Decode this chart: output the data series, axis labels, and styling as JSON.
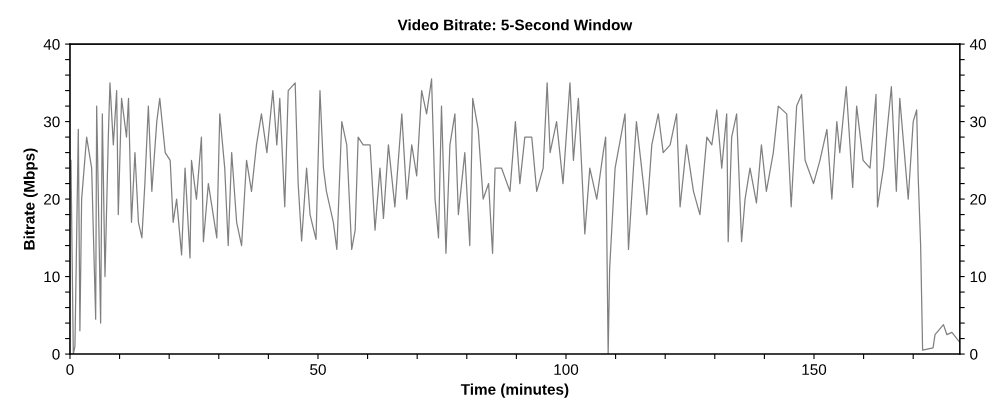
{
  "chart_data": {
    "type": "line",
    "title": "Video Bitrate: 5-Second Window",
    "xlabel": "Time (minutes)",
    "ylabel": "Bitrate (Mbps)",
    "xlim": [
      0,
      179.4
    ],
    "xticks": [
      0,
      {
        "value": 10,
        "label": null
      },
      {
        "value": 20,
        "label": null
      },
      {
        "value": 30,
        "label": null
      },
      {
        "value": 40,
        "label": null
      },
      50,
      {
        "value": 60,
        "label": null
      },
      {
        "value": 70,
        "label": null
      },
      {
        "value": 80,
        "label": null
      },
      {
        "value": 90,
        "label": null
      },
      100,
      {
        "value": 110,
        "label": null
      },
      {
        "value": 120,
        "label": null
      },
      {
        "value": 130,
        "label": null
      },
      {
        "value": 140,
        "label": null
      },
      150,
      {
        "value": 160,
        "label": null
      },
      {
        "value": 170,
        "label": null
      }
    ],
    "ylim": [
      0,
      40
    ],
    "yticks": [
      0,
      {
        "value": 2,
        "label": null
      },
      {
        "value": 4,
        "label": null
      },
      {
        "value": 6,
        "label": null
      },
      {
        "value": 8,
        "label": null
      },
      10,
      {
        "value": 12,
        "label": null
      },
      {
        "value": 14,
        "label": null
      },
      {
        "value": 16,
        "label": null
      },
      {
        "value": 18,
        "label": null
      },
      20,
      {
        "value": 22,
        "label": null
      },
      {
        "value": 24,
        "label": null
      },
      {
        "value": 26,
        "label": null
      },
      {
        "value": 28,
        "label": null
      },
      30,
      {
        "value": 32,
        "label": null
      },
      {
        "value": 34,
        "label": null
      },
      {
        "value": 36,
        "label": null
      },
      {
        "value": 38,
        "label": null
      },
      40
    ],
    "y2lim": [
      0,
      40
    ],
    "y2ticks": [
      0,
      {
        "value": 2,
        "label": null
      },
      {
        "value": 4,
        "label": null
      },
      {
        "value": 6,
        "label": null
      },
      {
        "value": 8,
        "label": null
      },
      10,
      {
        "value": 12,
        "label": null
      },
      {
        "value": 14,
        "label": null
      },
      {
        "value": 16,
        "label": null
      },
      {
        "value": 18,
        "label": null
      },
      20,
      {
        "value": 22,
        "label": null
      },
      {
        "value": 24,
        "label": null
      },
      {
        "value": 26,
        "label": null
      },
      {
        "value": 28,
        "label": null
      },
      30,
      {
        "value": 32,
        "label": null
      },
      {
        "value": 34,
        "label": null
      },
      {
        "value": 36,
        "label": null
      },
      {
        "value": 38,
        "label": null
      },
      40
    ],
    "grid": false,
    "legend": false,
    "marker": "none",
    "line_style": "solid",
    "series": [
      {
        "color": "#808080",
        "x": [
          0.2,
          0.67,
          1.0,
          1.68,
          2.0,
          2.35,
          3.36,
          4.37,
          5.18,
          5.38,
          6.18,
          6.52,
          7.06,
          7.73,
          8.06,
          8.74,
          9.41,
          9.74,
          10.4,
          11.4,
          11.8,
          12.4,
          13.1,
          13.8,
          14.5,
          15.1,
          15.8,
          16.5,
          17.5,
          18.1,
          19.2,
          20.2,
          20.8,
          21.5,
          22.5,
          23.2,
          24.2,
          24.5,
          25.5,
          26.5,
          26.9,
          27.9,
          29.6,
          30.2,
          31.2,
          31.9,
          32.6,
          33.6,
          34.6,
          35.6,
          36.6,
          37.6,
          38.6,
          39.7,
          40.9,
          41.7,
          42.3,
          43.3,
          44.0,
          45.4,
          46.0,
          46.7,
          47.7,
          48.4,
          49.6,
          50.4,
          51.1,
          51.7,
          53.1,
          53.8,
          54.8,
          55.8,
          56.8,
          57.5,
          58.1,
          59.1,
          60.5,
          61.5,
          62.5,
          63.2,
          64.2,
          65.5,
          66.9,
          67.9,
          68.9,
          69.9,
          70.9,
          71.9,
          72.9,
          73.6,
          74.3,
          74.9,
          75.8,
          76.6,
          77.6,
          78.3,
          79.6,
          80.6,
          81.2,
          82.3,
          83.3,
          84.4,
          85.2,
          85.7,
          87.0,
          88.7,
          89.8,
          90.7,
          91.7,
          93.1,
          94.1,
          95.4,
          96.2,
          96.8,
          98.1,
          99.4,
          100.8,
          101.5,
          102.5,
          103.8,
          104.8,
          106.2,
          107.5,
          108.0,
          108.5,
          108.8,
          109.9,
          111.9,
          112.6,
          113.6,
          114.2,
          116.3,
          117.3,
          118.6,
          119.6,
          121.0,
          122.3,
          123.0,
          124.3,
          125.7,
          127.0,
          128.4,
          129.4,
          130.4,
          131.4,
          132.4,
          132.7,
          133.4,
          134.4,
          135.4,
          136.1,
          137.1,
          138.4,
          139.4,
          140.4,
          141.8,
          142.8,
          144.5,
          145.4,
          146.5,
          147.5,
          148.2,
          149.9,
          151.2,
          152.6,
          153.6,
          154.6,
          155.2,
          156.5,
          157.8,
          158.6,
          159.9,
          161.3,
          162.5,
          162.8,
          164.0,
          165.6,
          166.6,
          167.3,
          169.0,
          170.0,
          170.7,
          171.0,
          171.5,
          171.9,
          174.0,
          174.4,
          176.1,
          176.8,
          177.8,
          179.4
        ],
        "values": [
          25,
          0,
          1,
          29,
          3,
          20,
          28,
          24,
          4.5,
          32,
          4,
          31,
          10,
          28,
          35,
          27,
          34,
          18,
          33,
          28,
          33,
          17,
          26,
          17,
          15,
          22,
          32,
          21,
          30,
          33,
          26,
          25,
          17,
          20,
          12.8,
          24,
          12.4,
          25,
          20,
          28,
          14.5,
          22,
          15,
          31,
          24,
          14,
          26,
          17,
          14,
          25,
          21,
          27,
          31,
          26,
          34,
          27,
          33,
          19,
          34,
          35,
          22,
          14.6,
          24,
          18,
          14.8,
          34,
          24,
          21,
          17,
          13.5,
          30,
          27,
          13.5,
          16,
          28,
          27,
          27,
          16,
          24,
          17.5,
          27,
          19,
          31,
          20,
          27,
          23,
          34,
          31,
          35.5,
          20,
          15,
          32,
          13,
          27,
          31,
          18,
          26,
          14,
          33,
          29,
          20,
          22,
          13,
          24,
          24,
          21,
          30,
          22,
          28,
          28,
          21,
          24,
          35,
          26,
          30,
          22,
          35,
          25,
          33,
          15.5,
          24,
          20,
          26,
          28,
          0,
          11,
          24,
          31,
          13.5,
          24,
          30,
          18,
          27,
          31,
          26,
          27,
          31,
          19,
          27,
          21,
          18,
          28,
          27,
          31.5,
          24,
          31,
          14.5,
          28,
          31,
          14.5,
          20,
          24,
          19.5,
          27,
          21,
          26,
          32,
          31,
          19,
          32,
          33.5,
          25,
          22,
          25,
          29,
          20,
          30,
          26,
          34.5,
          21.5,
          32,
          25,
          24,
          33.5,
          19,
          24,
          34.5,
          21,
          33,
          20,
          30,
          31.5,
          23,
          14,
          0.5,
          0.8,
          2.5,
          3.8,
          2.5,
          2.8,
          1.5
        ]
      }
    ]
  }
}
